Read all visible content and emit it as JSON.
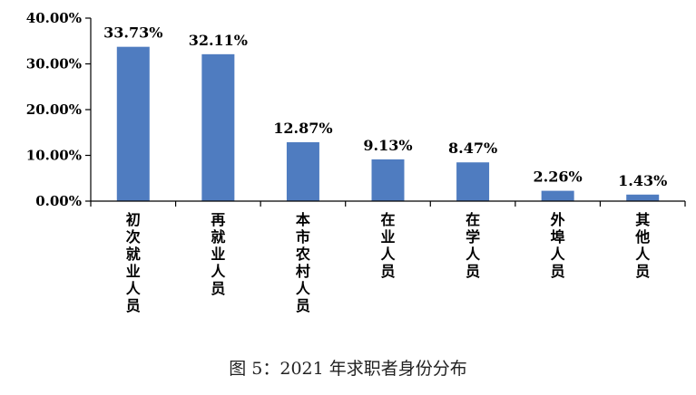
{
  "caption": "图 5：2021 年求职者身份分布",
  "colors": {
    "bar": "#4F7CC0",
    "axis": "#000000"
  },
  "chart_data": {
    "type": "bar",
    "categories": [
      "初次就业人员",
      "再就业人员",
      "本市农村人员",
      "在业人员",
      "在学人员",
      "外埠人员",
      "其他人员"
    ],
    "values": [
      33.73,
      32.11,
      12.87,
      9.13,
      8.47,
      2.26,
      1.43
    ],
    "data_labels": [
      "33.73%",
      "32.11%",
      "12.87%",
      "9.13%",
      "8.47%",
      "2.26%",
      "1.43%"
    ],
    "y_ticks": [
      0,
      10,
      20,
      30,
      40
    ],
    "y_tick_labels": [
      "0.00%",
      "10.00%",
      "20.00%",
      "30.00%",
      "40.00%"
    ],
    "ylim": [
      0,
      40
    ],
    "grid": false,
    "legend": "none"
  }
}
